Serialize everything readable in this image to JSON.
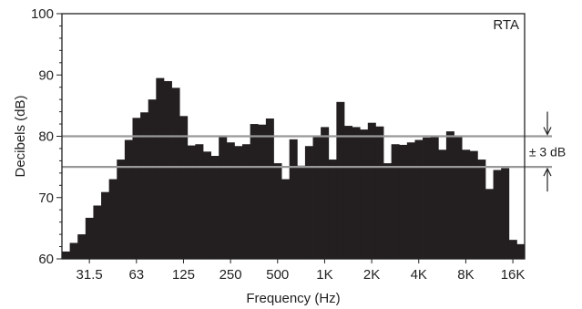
{
  "chart_data": {
    "type": "bar",
    "xlabel": "Frequency (Hz)",
    "ylabel": "Decibels (dB)",
    "ylim": [
      60,
      100
    ],
    "yticks": [
      60,
      70,
      80,
      90,
      100
    ],
    "xtick_labels": [
      "31.5",
      "63",
      "125",
      "250",
      "500",
      "1K",
      "2K",
      "4K",
      "8K",
      "16K"
    ],
    "x_scale": "log (1/6-octave bands)",
    "corner_label": "RTA",
    "reference_lines": [
      80,
      75
    ],
    "range_label": "± 3 dB",
    "bar_color": "#231f20",
    "line_color": "#999999",
    "values": [
      61.2,
      62.6,
      64.0,
      66.7,
      68.7,
      70.9,
      73.0,
      76.2,
      79.4,
      83.0,
      83.9,
      86.0,
      89.5,
      89.0,
      87.9,
      83.3,
      78.5,
      78.7,
      77.5,
      76.8,
      79.9,
      79.0,
      78.4,
      78.7,
      82.0,
      81.9,
      82.9,
      75.6,
      73.0,
      79.5,
      75.2,
      78.4,
      79.9,
      81.5,
      76.2,
      85.6,
      81.7,
      81.5,
      81.1,
      82.2,
      81.6,
      75.6,
      78.7,
      78.6,
      79.0,
      79.4,
      79.8,
      79.9,
      77.8,
      80.8,
      80.1,
      77.8,
      77.6,
      76.2,
      71.4,
      74.5,
      74.8,
      63.1,
      62.4
    ]
  }
}
